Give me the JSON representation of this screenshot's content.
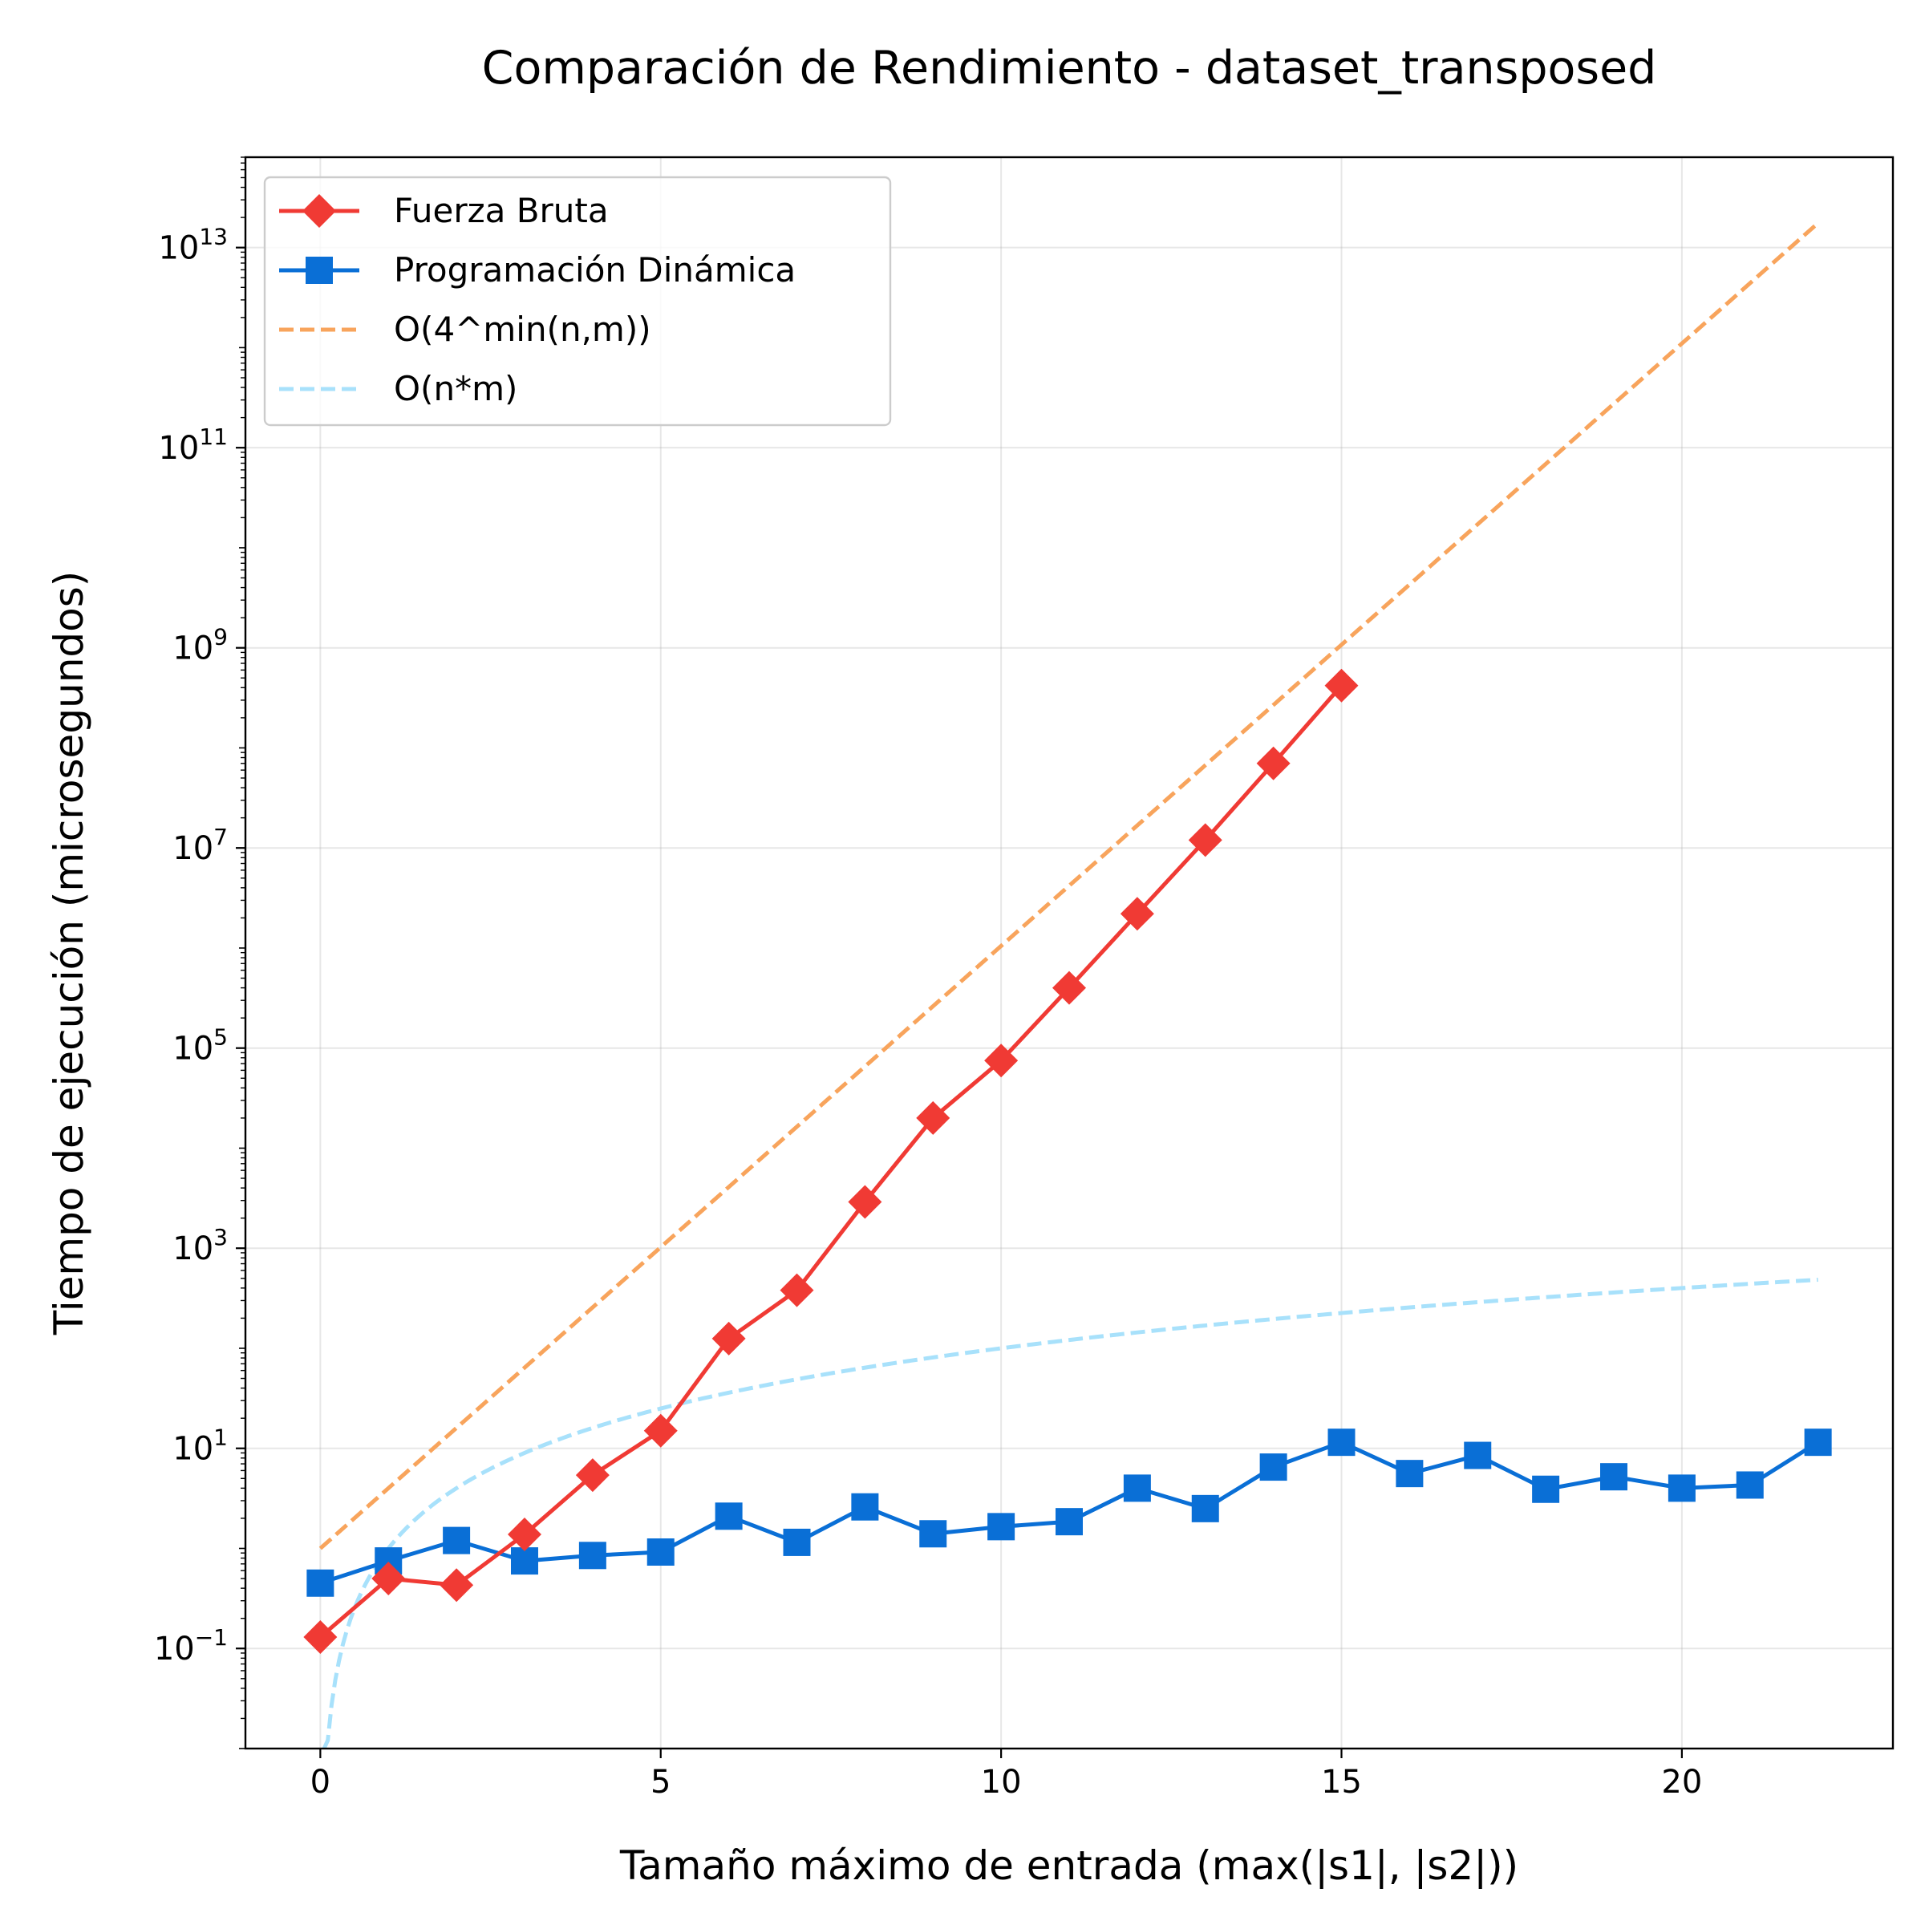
{
  "chart_data": {
    "type": "line",
    "title": "Comparación de Rendimiento - dataset_transposed",
    "xlabel": "Tamaño máximo de entrada (max(|s1|, |s2|))",
    "ylabel": "Tiempo de ejecución (microsegundos)",
    "xscale": "linear",
    "yscale": "log",
    "xlim": [
      -1.1,
      23.1
    ],
    "ylim": [
      0.01,
      80000000000000.0
    ],
    "xticks": [
      0,
      5,
      10,
      15,
      20
    ],
    "yticks": [
      {
        "value": 0.1,
        "base": "10",
        "exp": "−1"
      },
      {
        "value": 10,
        "base": "10",
        "exp": "1"
      },
      {
        "value": 1000,
        "base": "10",
        "exp": "3"
      },
      {
        "value": 100000,
        "base": "10",
        "exp": "5"
      },
      {
        "value": 10000000,
        "base": "10",
        "exp": "7"
      },
      {
        "value": 1000000000,
        "base": "10",
        "exp": "9"
      },
      {
        "value": 100000000000,
        "base": "10",
        "exp": "11"
      },
      {
        "value": 10000000000000,
        "base": "10",
        "exp": "13"
      }
    ],
    "grid": true,
    "legend_position": "top-left",
    "series": [
      {
        "name": "Fuerza Bruta",
        "color": "#f03a34",
        "style": "solid",
        "marker": "diamond",
        "x": [
          0,
          1,
          2,
          3,
          4,
          5,
          6,
          7,
          8,
          9,
          10,
          11,
          12,
          13,
          14,
          15
        ],
        "y": [
          0.13,
          0.5,
          0.43,
          1.38,
          5.4,
          15,
          125,
          380,
          2900,
          20000,
          75000,
          400000,
          2200000,
          12000000,
          70000000,
          420000000
        ]
      },
      {
        "name": "Programación Dinámica",
        "color": "#0a6fd6",
        "style": "solid",
        "marker": "square",
        "x": [
          0,
          1,
          2,
          3,
          4,
          5,
          6,
          7,
          8,
          9,
          10,
          11,
          12,
          13,
          14,
          15,
          16,
          17,
          18,
          19,
          20,
          21,
          22
        ],
        "y": [
          0.45,
          0.75,
          1.2,
          0.75,
          0.85,
          0.92,
          2.1,
          1.15,
          2.6,
          1.4,
          1.65,
          1.85,
          4.0,
          2.5,
          6.5,
          11.5,
          5.6,
          8.5,
          3.9,
          5.2,
          4.0,
          4.3,
          11.5
        ]
      },
      {
        "name": "O(4^min(n,m))",
        "color": "#f8a45c",
        "style": "dashed",
        "marker": "none",
        "function": "4^x",
        "x_range": [
          0,
          22
        ]
      },
      {
        "name": "O(n*m)",
        "color": "#a8e1fb",
        "style": "dashed",
        "marker": "none",
        "function": "x^2",
        "x_range": [
          0,
          22
        ]
      }
    ]
  }
}
